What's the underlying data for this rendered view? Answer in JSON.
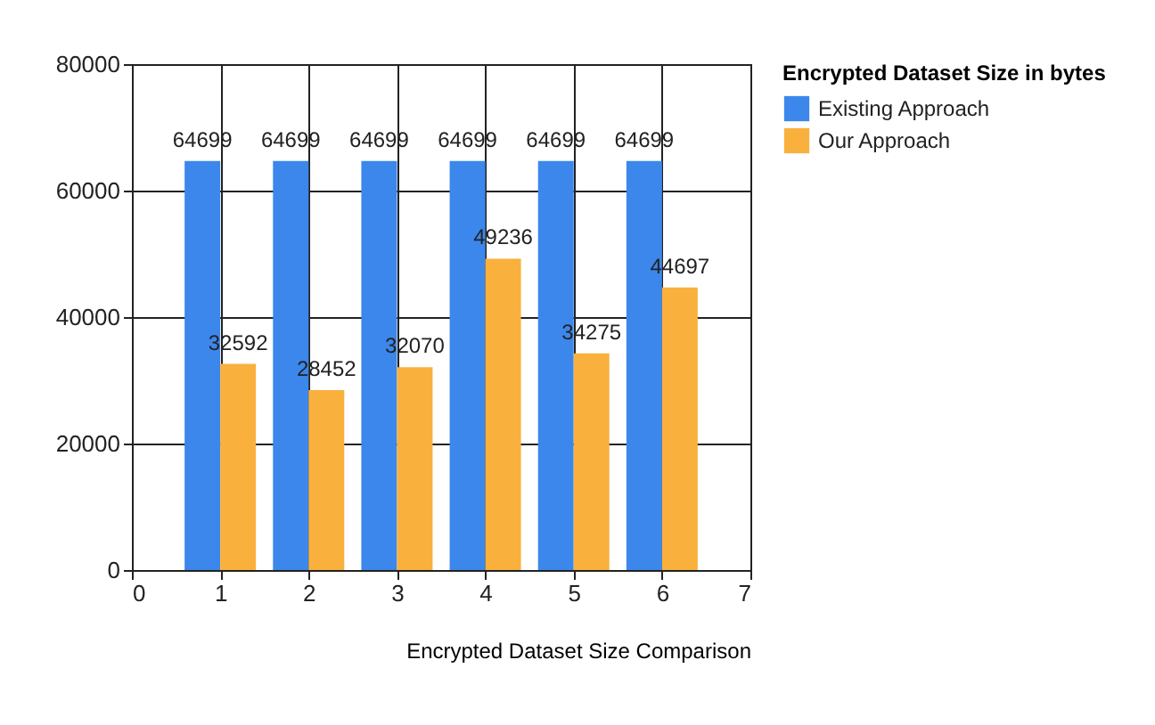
{
  "chart_data": {
    "type": "bar",
    "xlabel": "Encrypted Dataset Size Comparison",
    "legend_title": "Encrypted Dataset Size in bytes",
    "x": [
      1,
      2,
      3,
      4,
      5,
      6
    ],
    "series": [
      {
        "name": "Existing Approach",
        "color": "#3c87eb",
        "values": [
          64699,
          64699,
          64699,
          64699,
          64699,
          64699
        ]
      },
      {
        "name": "Our Approach",
        "color": "#f9b03c",
        "values": [
          32592,
          28452,
          32070,
          49236,
          34275,
          44697
        ]
      }
    ],
    "xlim": [
      0,
      7
    ],
    "xticks": [
      0,
      1,
      2,
      3,
      4,
      5,
      6,
      7
    ],
    "ylim": [
      0,
      80000
    ],
    "yticks": [
      0,
      20000,
      40000,
      60000,
      80000
    ],
    "grid": true,
    "legend": "top right",
    "data_labels": true
  }
}
